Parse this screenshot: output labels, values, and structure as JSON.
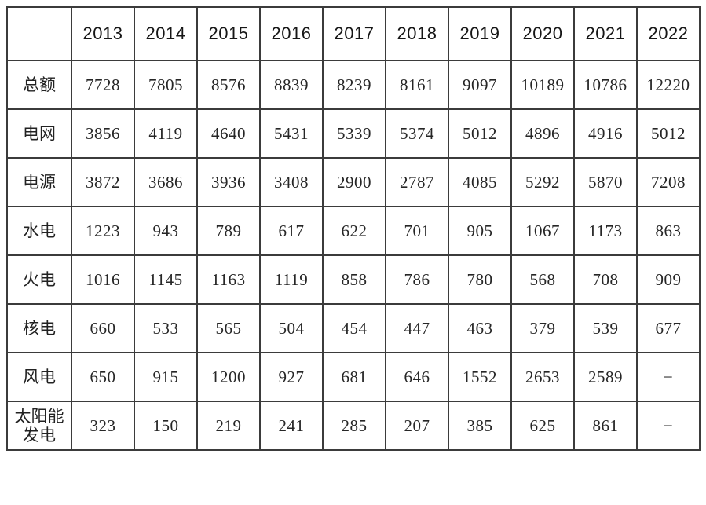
{
  "table": {
    "corner_label": "",
    "columns": [
      "2013",
      "2014",
      "2015",
      "2016",
      "2017",
      "2018",
      "2019",
      "2020",
      "2021",
      "2022"
    ],
    "rows": [
      {
        "label": "总额",
        "values": [
          "7728",
          "7805",
          "8576",
          "8839",
          "8239",
          "8161",
          "9097",
          "10189",
          "10786",
          "12220"
        ]
      },
      {
        "label": "电网",
        "values": [
          "3856",
          "4119",
          "4640",
          "5431",
          "5339",
          "5374",
          "5012",
          "4896",
          "4916",
          "5012"
        ]
      },
      {
        "label": "电源",
        "values": [
          "3872",
          "3686",
          "3936",
          "3408",
          "2900",
          "2787",
          "4085",
          "5292",
          "5870",
          "7208"
        ]
      },
      {
        "label": "水电",
        "values": [
          "1223",
          "943",
          "789",
          "617",
          "622",
          "701",
          "905",
          "1067",
          "1173",
          "863"
        ]
      },
      {
        "label": "火电",
        "values": [
          "1016",
          "1145",
          "1163",
          "1119",
          "858",
          "786",
          "780",
          "568",
          "708",
          "909"
        ]
      },
      {
        "label": "核电",
        "values": [
          "660",
          "533",
          "565",
          "504",
          "454",
          "447",
          "463",
          "379",
          "539",
          "677"
        ]
      },
      {
        "label": "风电",
        "values": [
          "650",
          "915",
          "1200",
          "927",
          "681",
          "646",
          "1552",
          "2653",
          "2589",
          "−"
        ]
      },
      {
        "label": "太阳能发电",
        "values": [
          "323",
          "150",
          "219",
          "241",
          "285",
          "207",
          "385",
          "625",
          "861",
          "−"
        ]
      }
    ],
    "missing_value_symbol": "−",
    "border_color": "#3b3b3b",
    "background_color": "#ffffff"
  },
  "chart_data": {
    "type": "table",
    "title": "",
    "categories": [
      "2013",
      "2014",
      "2015",
      "2016",
      "2017",
      "2018",
      "2019",
      "2020",
      "2021",
      "2022"
    ],
    "series": [
      {
        "name": "总额",
        "values": [
          7728,
          7805,
          8576,
          8839,
          8239,
          8161,
          9097,
          10189,
          10786,
          12220
        ]
      },
      {
        "name": "电网",
        "values": [
          3856,
          4119,
          4640,
          5431,
          5339,
          5374,
          5012,
          4896,
          4916,
          5012
        ]
      },
      {
        "name": "电源",
        "values": [
          3872,
          3686,
          3936,
          3408,
          2900,
          2787,
          4085,
          5292,
          5870,
          7208
        ]
      },
      {
        "name": "水电",
        "values": [
          1223,
          943,
          789,
          617,
          622,
          701,
          905,
          1067,
          1173,
          863
        ]
      },
      {
        "name": "火电",
        "values": [
          1016,
          1145,
          1163,
          1119,
          858,
          786,
          780,
          568,
          708,
          909
        ]
      },
      {
        "name": "核电",
        "values": [
          660,
          533,
          565,
          504,
          454,
          447,
          463,
          379,
          539,
          677
        ]
      },
      {
        "name": "风电",
        "values": [
          650,
          915,
          1200,
          927,
          681,
          646,
          1552,
          2653,
          2589,
          null
        ]
      },
      {
        "name": "太阳能发电",
        "values": [
          323,
          150,
          219,
          241,
          285,
          207,
          385,
          625,
          861,
          null
        ]
      }
    ]
  }
}
